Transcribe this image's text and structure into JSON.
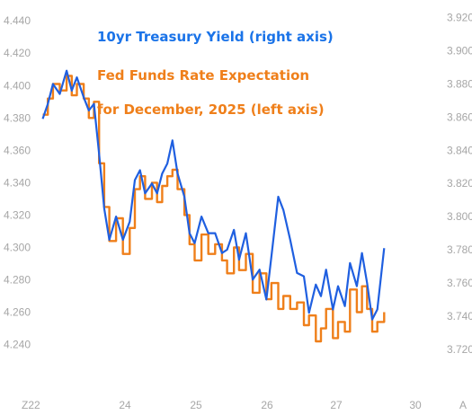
{
  "chart_data": {
    "type": "line",
    "legend": {
      "treasury": "10yr Treasury Yield (right axis)",
      "fedfunds_line1": "Fed Funds Rate Expectation",
      "fedfunds_line2": "for December, 2025 (left axis)"
    },
    "colors": {
      "treasury": "#1f5fe0",
      "fedfunds": "#ef7f1a"
    },
    "x_labels": [
      "22",
      "24",
      "25",
      "26",
      "27",
      "30"
    ],
    "x_label_prefix": "Z",
    "x_label_suffix_right": "A",
    "left_axis": {
      "ticks": [
        "4.440",
        "4.420",
        "4.400",
        "4.380",
        "4.360",
        "4.340",
        "4.320",
        "4.300",
        "4.280",
        "4.260",
        "4.240"
      ],
      "ylim": [
        4.232,
        4.444
      ]
    },
    "right_axis": {
      "ticks": [
        "3.920",
        "3.900",
        "3.880",
        "3.860",
        "3.840",
        "3.820",
        "3.800",
        "3.780",
        "3.760",
        "3.740",
        "3.720"
      ],
      "ylim": [
        3.715,
        3.922
      ]
    },
    "x_range": [
      0.8,
      5.35
    ],
    "series": [
      {
        "key": "fedfunds",
        "axis": "left",
        "x": [
          0.9,
          0.96,
          1.02,
          1.1,
          1.18,
          1.24,
          1.3,
          1.38,
          1.44,
          1.5,
          1.56,
          1.62,
          1.68,
          1.76,
          1.84,
          1.92,
          1.98,
          2.04,
          2.1,
          2.18,
          2.24,
          2.3,
          2.36,
          2.42,
          2.48,
          2.56,
          2.62,
          2.68,
          2.76,
          2.84,
          2.92,
          3.0,
          3.06,
          3.14,
          3.2,
          3.28,
          3.36,
          3.44,
          3.52,
          3.58,
          3.66,
          3.72,
          3.8,
          3.88,
          3.96,
          4.02,
          4.1,
          4.16,
          4.22,
          4.3,
          4.36,
          4.44,
          4.5,
          4.58,
          4.64,
          4.7,
          4.76,
          4.82,
          4.9
        ],
        "values": [
          4.382,
          4.392,
          4.401,
          4.397,
          4.406,
          4.394,
          4.401,
          4.392,
          4.38,
          4.39,
          4.352,
          4.325,
          4.304,
          4.318,
          4.296,
          4.312,
          4.336,
          4.344,
          4.33,
          4.34,
          4.328,
          4.338,
          4.344,
          4.348,
          4.336,
          4.32,
          4.302,
          4.292,
          4.308,
          4.296,
          4.302,
          4.292,
          4.284,
          4.3,
          4.286,
          4.296,
          4.272,
          4.284,
          4.268,
          4.278,
          4.262,
          4.27,
          4.262,
          4.266,
          4.252,
          4.258,
          4.242,
          4.25,
          4.262,
          4.244,
          4.254,
          4.248,
          4.274,
          4.26,
          4.276,
          4.262,
          4.248,
          4.254,
          4.26
        ]
      },
      {
        "key": "treasury",
        "axis": "right",
        "x": [
          0.9,
          0.96,
          1.02,
          1.1,
          1.18,
          1.24,
          1.3,
          1.38,
          1.44,
          1.5,
          1.56,
          1.62,
          1.68,
          1.76,
          1.84,
          1.92,
          1.98,
          2.04,
          2.1,
          2.18,
          2.24,
          2.3,
          2.36,
          2.42,
          2.48,
          2.56,
          2.62,
          2.68,
          2.76,
          2.84,
          2.92,
          3.0,
          3.06,
          3.14,
          3.2,
          3.28,
          3.36,
          3.44,
          3.52,
          3.58,
          3.66,
          3.72,
          3.8,
          3.88,
          3.96,
          4.02,
          4.1,
          4.16,
          4.22,
          4.3,
          4.36,
          4.44,
          4.5,
          4.58,
          4.64,
          4.7,
          4.76,
          4.82,
          4.9
        ],
        "values": [
          3.859,
          3.868,
          3.88,
          3.874,
          3.888,
          3.876,
          3.884,
          3.872,
          3.864,
          3.868,
          3.838,
          3.805,
          3.786,
          3.8,
          3.786,
          3.797,
          3.822,
          3.828,
          3.814,
          3.82,
          3.814,
          3.826,
          3.832,
          3.846,
          3.826,
          3.812,
          3.79,
          3.784,
          3.8,
          3.79,
          3.79,
          3.778,
          3.78,
          3.792,
          3.774,
          3.79,
          3.762,
          3.768,
          3.75,
          3.776,
          3.812,
          3.804,
          3.786,
          3.766,
          3.764,
          3.742,
          3.759,
          3.752,
          3.768,
          3.744,
          3.758,
          3.746,
          3.772,
          3.758,
          3.778,
          3.76,
          3.738,
          3.744,
          3.781
        ]
      }
    ]
  }
}
